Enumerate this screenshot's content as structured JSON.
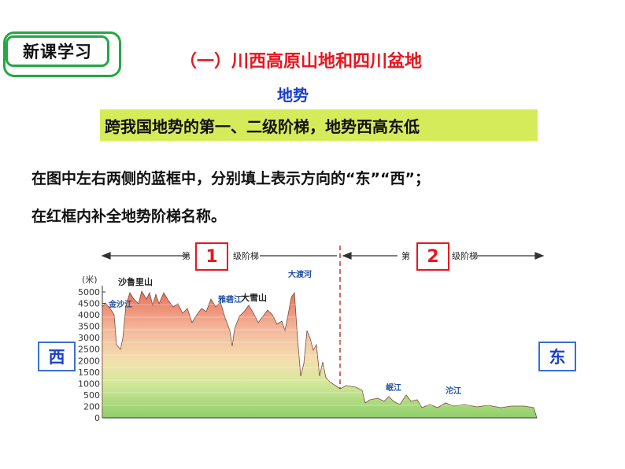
{
  "badge": {
    "label": "新课学习"
  },
  "title": "（一）川西高原山地和四川盆地",
  "subtitle": "地势",
  "highlight": "跨我国地势的第一、二级阶梯，地势西高东低",
  "instructions": [
    "在图中左右两侧的蓝框中，分别填上表示方向的“东”“西”；",
    "在红框内补全地势阶梯名称。"
  ],
  "directions": {
    "west": "西",
    "east": "东"
  },
  "steps": [
    {
      "prefix": "第",
      "number": "1",
      "suffix": "级阶梯"
    },
    {
      "prefix": "第",
      "number": "2",
      "suffix": "级阶梯"
    }
  ],
  "chart_data": {
    "type": "area",
    "ylabel": "(米)",
    "yticks": [
      0,
      200,
      500,
      1000,
      1500,
      2000,
      2500,
      3000,
      3500,
      4000,
      4500,
      5000
    ],
    "place_labels": [
      "沙鲁里山",
      "金沙江",
      "雅砻江",
      "大雪山",
      "大渡河",
      "岷江",
      "沱江"
    ],
    "colors": {
      "high": "#e8705a",
      "mid": "#f3d9a0",
      "low": "#8fcf6a"
    }
  }
}
